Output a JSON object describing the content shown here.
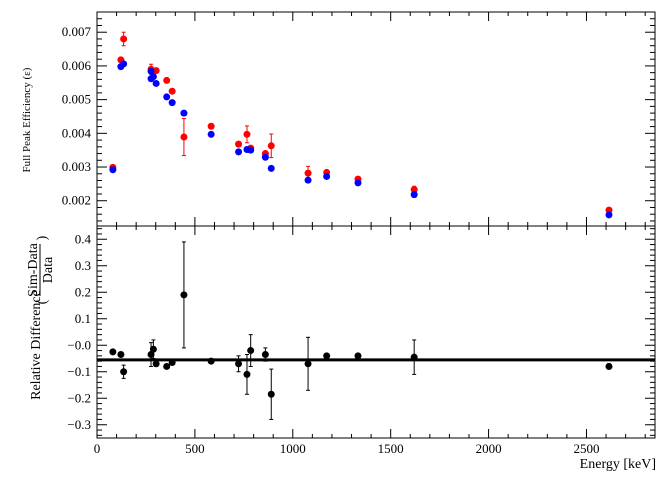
{
  "chart_data": [
    {
      "type": "scatter",
      "ylabel": "Full Peak Efficiency (ε)",
      "xlim": [
        0,
        2850
      ],
      "ylim": [
        0.00125,
        0.0076
      ],
      "xticks": [
        0,
        500,
        1000,
        1500,
        2000,
        2500
      ],
      "yticks": [
        0.002,
        0.003,
        0.004,
        0.005,
        0.006,
        0.007
      ],
      "ytick_labels": [
        "0.002",
        "0.003",
        "0.004",
        "0.005",
        "0.006",
        "0.007"
      ],
      "colors": {
        "red": "#ff0000",
        "blue": "#0000ff",
        "axis": "#000000"
      },
      "series": [
        {
          "color_key": "red",
          "x": [
            81,
            122,
            136,
            276,
            302,
            356,
            384,
            444,
            583,
            723,
            766,
            785,
            860,
            890,
            1078,
            1173,
            1333,
            1620,
            2615
          ],
          "y": [
            0.00299,
            0.00618,
            0.0068,
            0.0059,
            0.00586,
            0.00557,
            0.00525,
            0.00389,
            0.00421,
            0.00368,
            0.00397,
            0.00356,
            0.0034,
            0.00363,
            0.00282,
            0.00284,
            0.00264,
            0.00233,
            0.00172
          ],
          "err": [
            5e-05,
            0.0,
            0.0002,
            0.00015,
            5e-05,
            5e-05,
            5e-05,
            0.00055,
            5e-05,
            0.0,
            0.00025,
            5e-05,
            5e-05,
            0.00035,
            0.0002,
            5e-05,
            5e-05,
            0.0001,
            3e-05
          ]
        },
        {
          "color_key": "blue",
          "x": [
            81,
            122,
            136,
            276,
            276,
            288,
            302,
            356,
            384,
            444,
            583,
            723,
            766,
            785,
            860,
            890,
            1078,
            1173,
            1333,
            1620,
            2615
          ],
          "y": [
            0.00292,
            0.00598,
            0.00606,
            0.00584,
            0.00562,
            0.00568,
            0.00548,
            0.00508,
            0.00491,
            0.0046,
            0.00397,
            0.00345,
            0.00352,
            0.0035,
            0.00329,
            0.00296,
            0.00261,
            0.00272,
            0.00253,
            0.00218,
            0.00158
          ]
        }
      ]
    },
    {
      "type": "scatter",
      "xlabel": "Energy [keV]",
      "ylabel": "Relative Difference",
      "ylabel_fraction": {
        "numerator": "Sim-Data",
        "denominator": "Data"
      },
      "xlim": [
        0,
        2850
      ],
      "ylim": [
        -0.35,
        0.45
      ],
      "xticks": [
        0,
        500,
        1000,
        1500,
        2000,
        2500
      ],
      "yticks": [
        -0.3,
        -0.2,
        -0.1,
        0.0,
        0.1,
        0.2,
        0.3,
        0.4
      ],
      "ytick_labels": [
        "−0.3",
        "−0.2",
        "−0.1",
        "−0.0",
        "0.1",
        "0.2",
        "0.3",
        "0.4"
      ],
      "reference_line_y": -0.055,
      "series": [
        {
          "color_key": "black",
          "x": [
            81,
            122,
            136,
            276,
            288,
            302,
            356,
            384,
            444,
            583,
            723,
            766,
            785,
            860,
            890,
            1078,
            1173,
            1333,
            1620,
            2615
          ],
          "y": [
            -0.025,
            -0.035,
            -0.1,
            -0.035,
            -0.015,
            -0.07,
            -0.08,
            -0.065,
            0.19,
            -0.06,
            -0.07,
            -0.11,
            -0.02,
            -0.035,
            -0.185,
            -0.07,
            -0.04,
            -0.04,
            -0.045,
            -0.08
          ],
          "err": [
            0.005,
            0.005,
            0.025,
            0.045,
            0.035,
            0.01,
            0.005,
            0.005,
            0.2,
            0.005,
            0.03,
            0.075,
            0.06,
            0.025,
            0.095,
            0.1,
            0.005,
            0.005,
            0.065,
            0.01
          ]
        }
      ]
    }
  ]
}
